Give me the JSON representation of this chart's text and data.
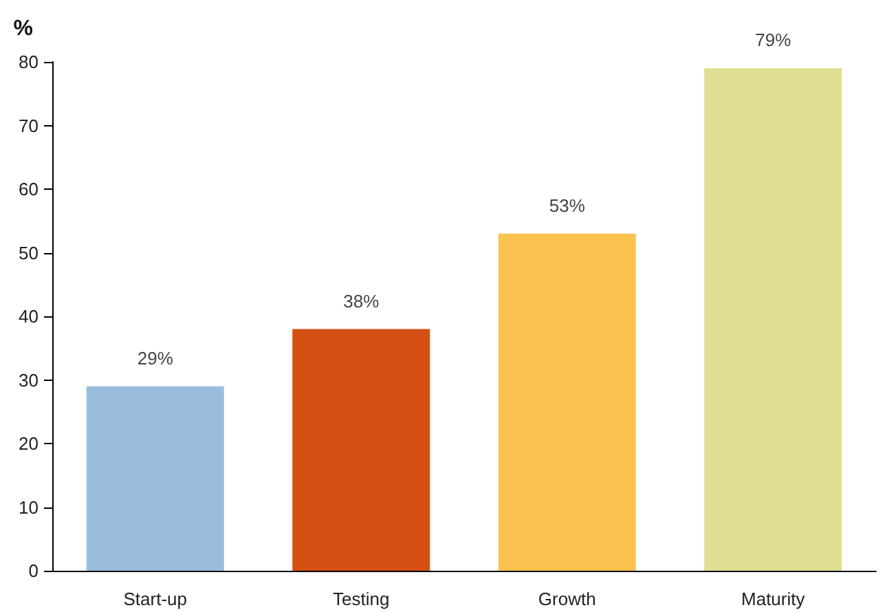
{
  "chart_data": {
    "type": "bar",
    "ylabel": "%",
    "categories": [
      "Start-up",
      "Testing",
      "Growth",
      "Maturity"
    ],
    "values": [
      29,
      38,
      53,
      79
    ],
    "colors": [
      "#9bbddd",
      "#d55113",
      "#fac24f",
      "#dfde91"
    ],
    "value_labels": [
      "29%",
      "38%",
      "53%",
      "79%"
    ],
    "ylim": [
      0,
      80
    ],
    "yticks": [
      0,
      10,
      20,
      30,
      40,
      50,
      60,
      70,
      80
    ],
    "grid": false
  }
}
